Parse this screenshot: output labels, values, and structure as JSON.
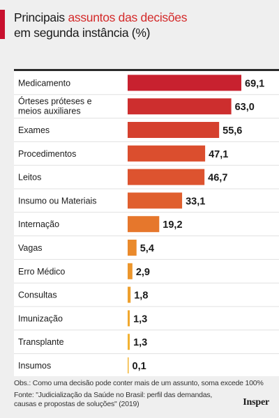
{
  "title": {
    "part1": "Principais ",
    "highlight": "assuntos das decisões",
    "line2": "em segunda instância (%)"
  },
  "note": "Obs.: Como uma decisão pode conter mais de um assunto, soma excede 100%",
  "source": "Fonte: \"Judicialização da Saúde no Brasil: perfil das demandas, causas e propostas de soluções\" (2019)",
  "logo": "Insper",
  "colors": {
    "accent": "#c8102e",
    "highlight": "#d42a2a"
  },
  "chart_data": {
    "type": "bar",
    "orientation": "horizontal",
    "categories": [
      "Medicamento",
      "Órteses próteses e meios auxiliares",
      "Exames",
      "Procedimentos",
      "Leitos",
      "Insumo ou Materiais",
      "Internação",
      "Vagas",
      "Erro Médico",
      "Consultas",
      "Imunização",
      "Transplante",
      "Insumos"
    ],
    "values": [
      69.1,
      63.0,
      55.6,
      47.1,
      46.7,
      33.1,
      19.2,
      5.4,
      2.9,
      1.8,
      1.3,
      1.3,
      0.1
    ],
    "value_labels": [
      "69,1",
      "63,0",
      "55,6",
      "47,1",
      "46,7",
      "33,1",
      "19,2",
      "5,4",
      "2,9",
      "1,8",
      "1,3",
      "1,3",
      "0,1"
    ],
    "bar_colors": [
      "#c8212f",
      "#cd2e2e",
      "#d5402e",
      "#db4e2e",
      "#dd532f",
      "#e05f2e",
      "#e6772c",
      "#ea8a2c",
      "#ec962c",
      "#eea02d",
      "#f0a82f",
      "#f2b233",
      "#f3b535"
    ],
    "xlim": [
      0,
      100
    ],
    "grid": false
  }
}
